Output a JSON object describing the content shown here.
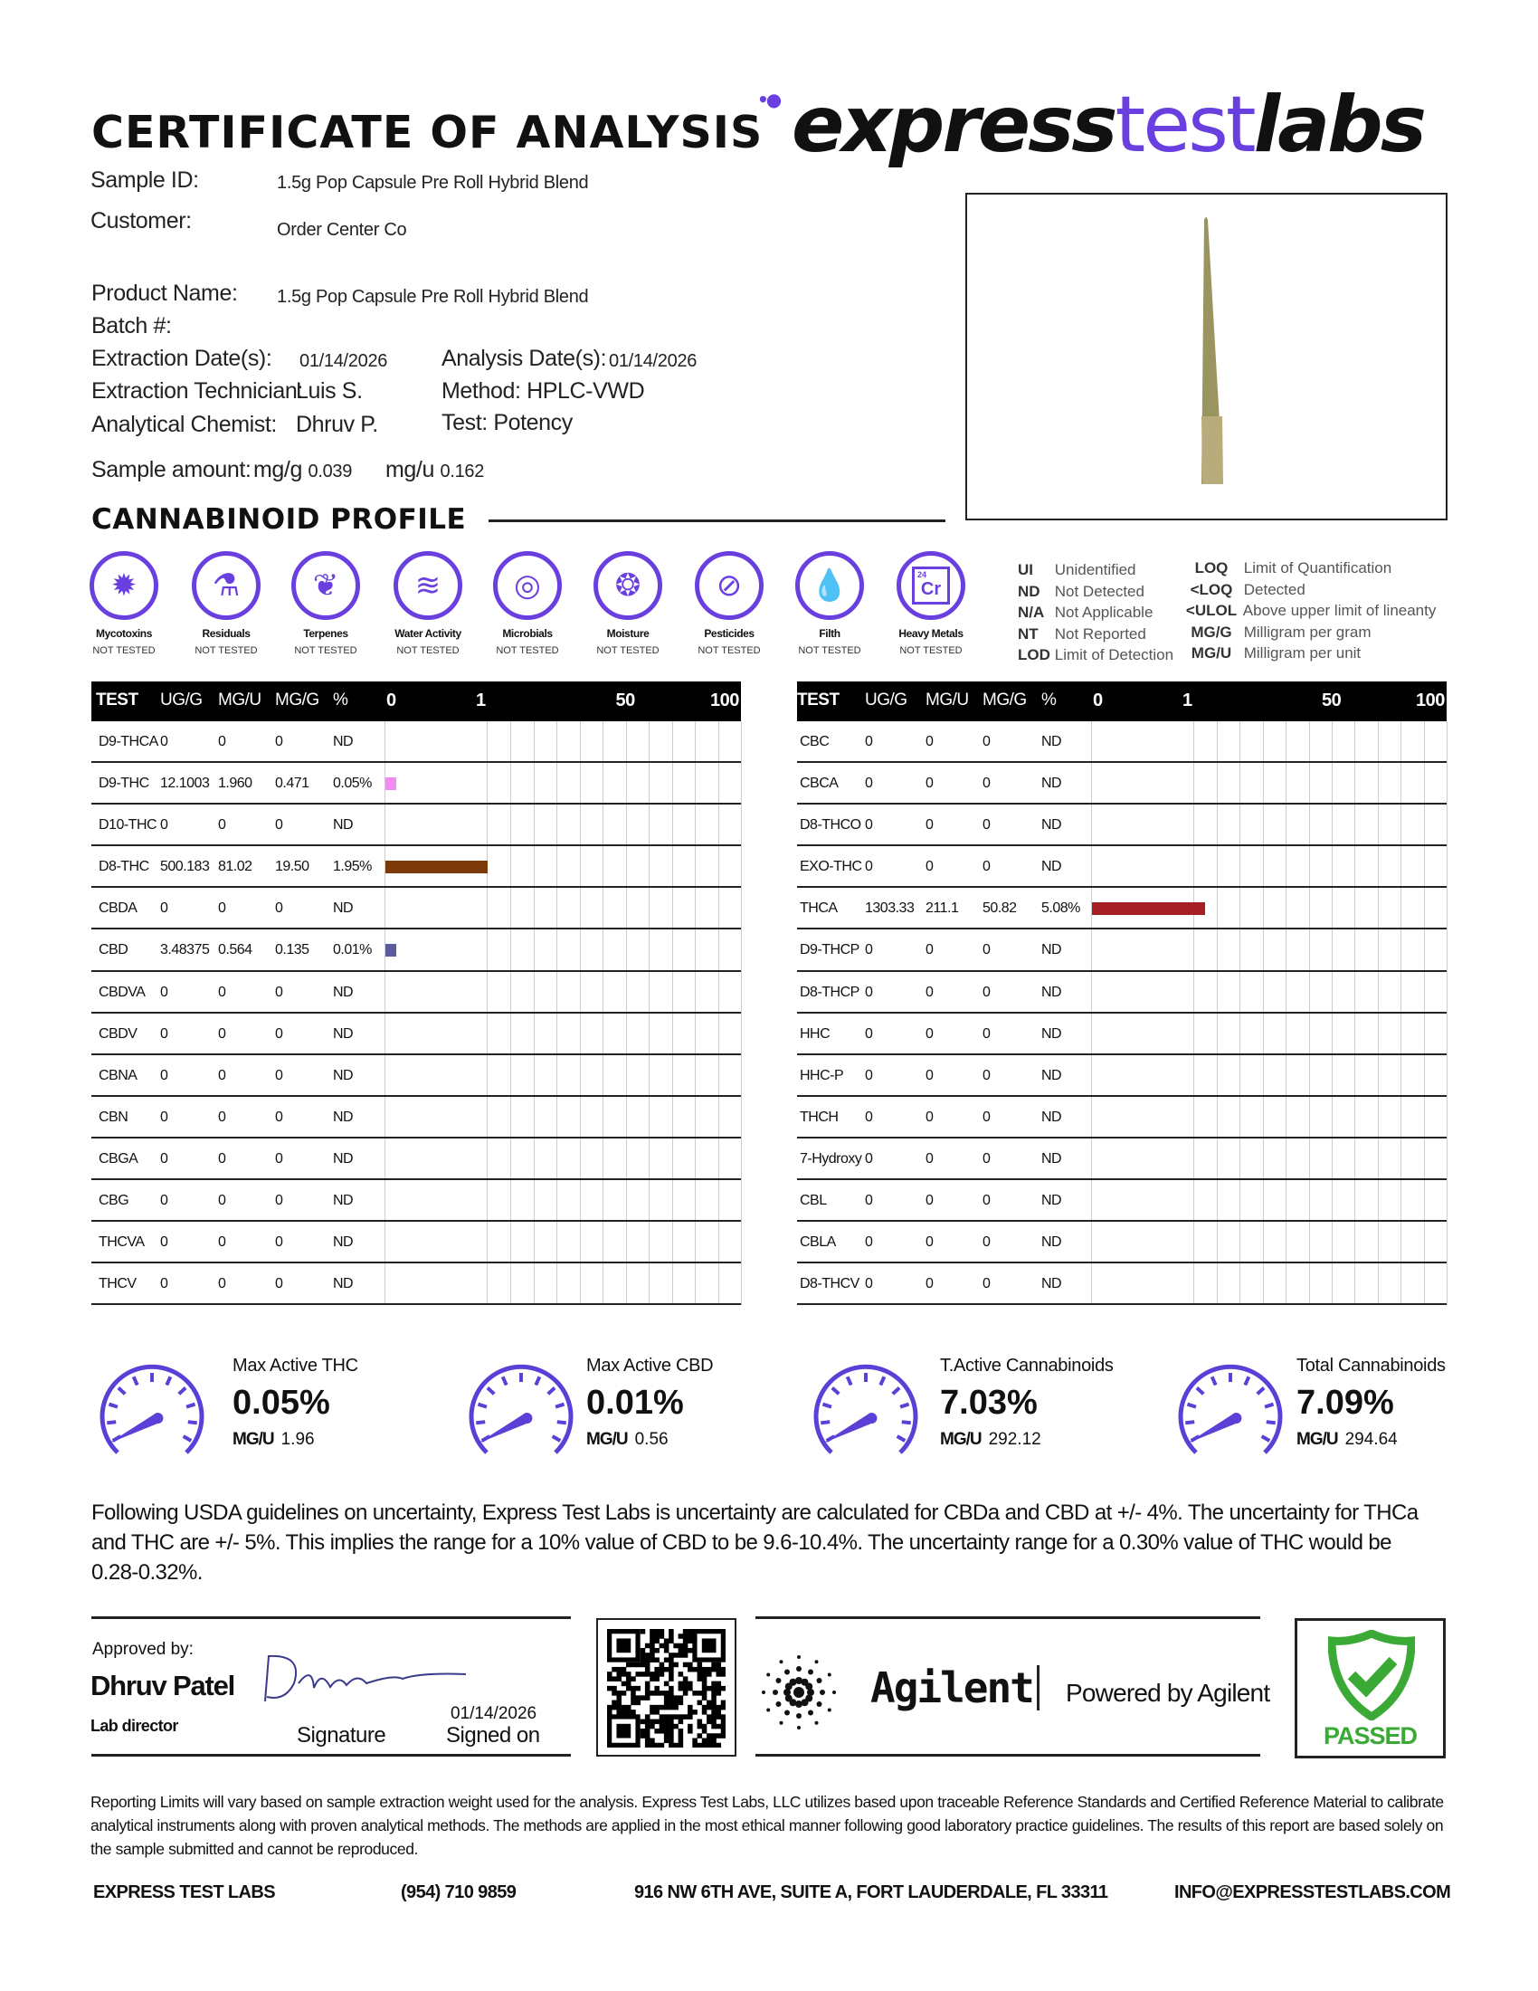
{
  "header": {
    "title": "CERTIFICATE OF ANALYSIS",
    "logo": {
      "part1": "express",
      "part2": "test",
      "part3": "labs"
    },
    "brand_color": "#6a3fe0"
  },
  "info": {
    "sample_id_label": "Sample ID:",
    "sample_id": "1.5g Pop Capsule Pre Roll Hybrid Blend",
    "customer_label": "Customer:",
    "customer": "Order Center Co",
    "product_name_label": "Product Name:",
    "product_name": "1.5g Pop Capsule Pre Roll Hybrid Blend",
    "batch_label": "Batch #:",
    "extraction_date_label": "Extraction Date(s):",
    "extraction_date": "01/14/2026",
    "analysis_date_label": "Analysis Date(s):",
    "analysis_date": "01/14/2026",
    "technician_label": "Extraction Technician:",
    "technician": "Luis S.",
    "method_label": "Method:",
    "method": "HPLC-VWD",
    "chemist_label": "Analytical Chemist:",
    "chemist": "Dhruv P.",
    "test_label": "Test:",
    "test": "Potency",
    "sample_amount_label": "Sample amount:",
    "mgg_label": "mg/g",
    "mgg": "0.039",
    "mgu_label": "mg/u",
    "mgu": "0.162"
  },
  "section_title": "CANNABINOID PROFILE",
  "tests": [
    {
      "name": "Mycotoxins",
      "status": "NOT TESTED",
      "icon": "mold-spore-icon"
    },
    {
      "name": "Residuals",
      "status": "NOT TESTED",
      "icon": "flask-warning-icon"
    },
    {
      "name": "Terpenes",
      "status": "NOT TESTED",
      "icon": "leaf-icon"
    },
    {
      "name": "Water Activity",
      "status": "NOT TESTED",
      "icon": "waves-icon"
    },
    {
      "name": "Microbials",
      "status": "NOT TESTED",
      "icon": "petri-dish-icon"
    },
    {
      "name": "Moisture",
      "status": "NOT TESTED",
      "icon": "droplets-icon"
    },
    {
      "name": "Pesticides",
      "status": "NOT TESTED",
      "icon": "spray-bottle-icon"
    },
    {
      "name": "Filth",
      "status": "NOT TESTED",
      "icon": "drop-icon"
    },
    {
      "name": "Heavy Metals",
      "status": "NOT TESTED",
      "icon": "chromium-element-icon",
      "symbol": "Cr",
      "number": "24"
    }
  ],
  "legend": [
    {
      "abbr": "UI",
      "text": "Unidentified"
    },
    {
      "abbr": "ND",
      "text": "Not Detected"
    },
    {
      "abbr": "N/A",
      "text": "Not Applicable"
    },
    {
      "abbr": "NT",
      "text": "Not Reported"
    },
    {
      "abbr": "LOD",
      "text": "Limit of Detection"
    },
    {
      "abbr": "LOQ",
      "text": "Limit of Quantification"
    },
    {
      "abbr": "<LOQ",
      "text": "Detected"
    },
    {
      "abbr": "<ULOL",
      "text": "Above upper limit of lineanty"
    },
    {
      "abbr": "MG/G",
      "text": "Milligram per gram"
    },
    {
      "abbr": "MG/U",
      "text": "Milligram per unit"
    }
  ],
  "table_headers": {
    "test": "TEST",
    "ugg": "UG/G",
    "mgu": "MG/U",
    "mgg": "MG/G",
    "pct": "%",
    "scale": [
      "0",
      "1",
      "50",
      "100"
    ]
  },
  "left_table": [
    [
      "D9-THCA",
      "0",
      "0",
      "0",
      "ND"
    ],
    [
      "D9-THC",
      "12.1003",
      "1.960",
      "0.471",
      "0.05%"
    ],
    [
      "D10-THC",
      "0",
      "0",
      "0",
      "ND"
    ],
    [
      "D8-THC",
      "500.183",
      "81.02",
      "19.50",
      "1.95%"
    ],
    [
      "CBDA",
      "0",
      "0",
      "0",
      "ND"
    ],
    [
      "CBD",
      "3.48375",
      "0.564",
      "0.135",
      "0.01%"
    ],
    [
      "CBDVA",
      "0",
      "0",
      "0",
      "ND"
    ],
    [
      "CBDV",
      "0",
      "0",
      "0",
      "ND"
    ],
    [
      "CBNA",
      "0",
      "0",
      "0",
      "ND"
    ],
    [
      "CBN",
      "0",
      "0",
      "0",
      "ND"
    ],
    [
      "CBGA",
      "0",
      "0",
      "0",
      "ND"
    ],
    [
      "CBG",
      "0",
      "0",
      "0",
      "ND"
    ],
    [
      "THCVA",
      "0",
      "0",
      "0",
      "ND"
    ],
    [
      "THCV",
      "0",
      "0",
      "0",
      "ND"
    ]
  ],
  "right_table": [
    [
      "CBC",
      "0",
      "0",
      "0",
      "ND"
    ],
    [
      "CBCA",
      "0",
      "0",
      "0",
      "ND"
    ],
    [
      "D8-THCO",
      "0",
      "0",
      "0",
      "ND"
    ],
    [
      "EXO-THC",
      "0",
      "0",
      "0",
      "ND"
    ],
    [
      "THCA",
      "1303.33",
      "211.1",
      "50.82",
      "5.08%"
    ],
    [
      "D9-THCP",
      "0",
      "0",
      "0",
      "ND"
    ],
    [
      "D8-THCP",
      "0",
      "0",
      "0",
      "ND"
    ],
    [
      "HHC",
      "0",
      "0",
      "0",
      "ND"
    ],
    [
      "HHC-P",
      "0",
      "0",
      "0",
      "ND"
    ],
    [
      "THCH",
      "0",
      "0",
      "0",
      "ND"
    ],
    [
      "7-Hydroxy",
      "0",
      "0",
      "0",
      "ND"
    ],
    [
      "CBL",
      "0",
      "0",
      "0",
      "ND"
    ],
    [
      "CBLA",
      "0",
      "0",
      "0",
      "ND"
    ],
    [
      "D8-THCV",
      "0",
      "0",
      "0",
      "ND"
    ]
  ],
  "bar_colors": {
    "D9-THC": "#f28cf0",
    "D8-THC": "#7b3a08",
    "CBD": "#5b5b9e",
    "THCA": "#a51f24"
  },
  "gauges": [
    {
      "title": "Max Active THC",
      "value": "0.05%",
      "mgu_label": "MG/U",
      "mgu": "1.96"
    },
    {
      "title": "Max Active CBD",
      "value": "0.01%",
      "mgu_label": "MG/U",
      "mgu": "0.56"
    },
    {
      "title": "T.Active Cannabinoids",
      "value": "7.03%",
      "mgu_label": "MG/U",
      "mgu": "292.12"
    },
    {
      "title": "Total Cannabinoids",
      "value": "7.09%",
      "mgu_label": "MG/U",
      "mgu": "294.64"
    }
  ],
  "uncertainty": "Following USDA guidelines on uncertainty, Express Test Labs is uncertainty are calculated for CBDa and CBD at +/- 4%. The uncertainty for THCa and THC are +/- 5%. This implies the range for a 10% value of CBD to be 9.6-10.4%. The uncertainty range for a 0.30% value of THC would be 0.28-0.32%.",
  "approval": {
    "approved_by_label": "Approved by:",
    "name": "Dhruv Patel",
    "role": "Lab director",
    "signature_label": "Signature",
    "signed_date": "01/14/2026",
    "signed_on_label": "Signed on"
  },
  "agilent": {
    "name": "Agilent",
    "powered": "Powered by Agilent"
  },
  "status": {
    "label": "PASSED",
    "color": "#3aa935"
  },
  "disclaimer": "Reporting Limits will vary based on sample extraction weight used for the analysis. Express Test Labs, LLC utilizes based upon traceable Reference Standards and Certified Reference Material to calibrate analytical instruments along with proven analytical methods. The methods are applied in the most ethical manner following good laboratory practice guidelines. The results of this report are based solely on the sample submitted and cannot be reproduced.",
  "footer": {
    "company": "EXPRESS TEST LABS",
    "phone": "(954) 710 9859",
    "address": "916 NW 6TH AVE, SUITE A, FORT LAUDERDALE, FL 33311",
    "email": "INFO@EXPRESSTESTLABS.COM"
  }
}
